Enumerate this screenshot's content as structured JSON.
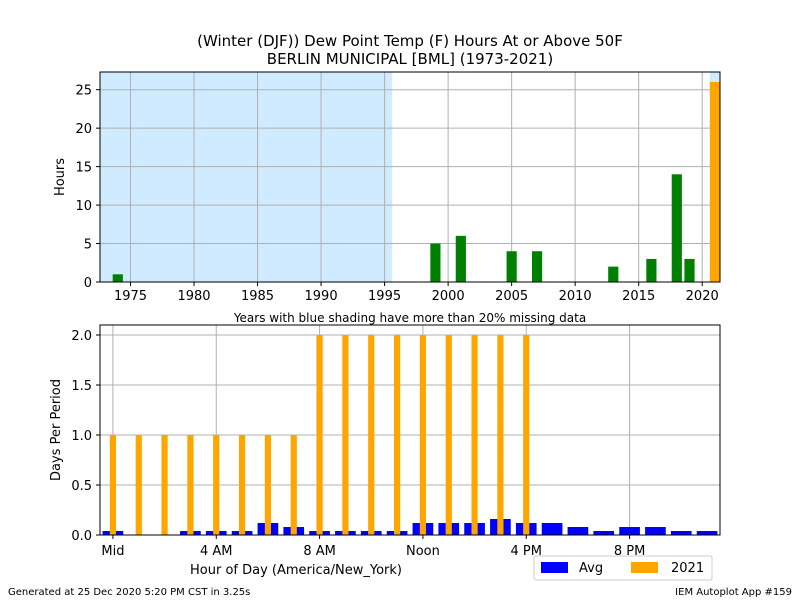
{
  "title_line1": "(Winter (DJF)) Dew Point Temp (F) Hours At or Above 50F",
  "title_line2": "BERLIN MUNICIPAL [BML] (1973-2021)",
  "footer_left": "Generated at 25 Dec 2020 5:20 PM CST in 3.25s",
  "footer_right": "IEM Autoplot App #159",
  "colors": {
    "yearly": "#008000",
    "current": "#FFA500",
    "avg": "#0000FF",
    "shading": "#D0EAFF",
    "grid": "#b0b0b0"
  },
  "chart_data": [
    {
      "type": "bar",
      "xlabel": "Years with blue shading have more than 20% missing data",
      "ylabel": "Hours",
      "xlim": [
        1972.6,
        2021.4
      ],
      "ylim": [
        0,
        27.3
      ],
      "xticks": [
        1975,
        1980,
        1985,
        1990,
        1995,
        2000,
        2005,
        2010,
        2015,
        2020
      ],
      "yticks": [
        0,
        5,
        10,
        15,
        20,
        25
      ],
      "grid": true,
      "shaded_ranges": [
        [
          1972.6,
          1995.6
        ],
        [
          2020.6,
          2021.4
        ]
      ],
      "series": [
        {
          "x": [
            1974,
            1999,
            2001,
            2005,
            2007,
            2013,
            2016,
            2018,
            2019
          ],
          "values": [
            1,
            5,
            6,
            4,
            4,
            2,
            3,
            14,
            3
          ]
        },
        {
          "x": [
            2021
          ],
          "values": [
            26
          ]
        }
      ]
    },
    {
      "type": "bar",
      "xlabel": "Hour of Day (America/New_York)",
      "ylabel": "Days Per Period",
      "xlim": [
        -0.5,
        23.5
      ],
      "ylim": [
        0,
        2.1
      ],
      "xticks": [
        0,
        4,
        8,
        12,
        16,
        20
      ],
      "xticklabels": [
        "Mid",
        "4 AM",
        "8 AM",
        "Noon",
        "4 PM",
        "8 PM"
      ],
      "yticks": [
        0.0,
        0.5,
        1.0,
        1.5,
        2.0
      ],
      "yticklabels": [
        "0.0",
        "0.5",
        "1.0",
        "1.5",
        "2.0"
      ],
      "grid": true,
      "legend_position": "bottom-right",
      "categories": [
        0,
        1,
        2,
        3,
        4,
        5,
        6,
        7,
        8,
        9,
        10,
        11,
        12,
        13,
        14,
        15,
        16,
        17,
        18,
        19,
        20,
        21,
        22,
        23
      ],
      "series": [
        {
          "name": "Avg",
          "values": [
            0.04,
            0.0,
            0.0,
            0.04,
            0.04,
            0.04,
            0.12,
            0.08,
            0.04,
            0.04,
            0.04,
            0.04,
            0.12,
            0.12,
            0.12,
            0.16,
            0.12,
            0.12,
            0.08,
            0.04,
            0.08,
            0.08,
            0.04,
            0.04
          ]
        },
        {
          "name": "2021",
          "values": [
            1,
            1,
            1,
            1,
            1,
            1,
            1,
            1,
            2,
            2,
            2,
            2,
            2,
            2,
            2,
            2,
            2,
            0,
            0,
            0,
            0,
            0,
            0,
            0
          ]
        }
      ]
    }
  ]
}
